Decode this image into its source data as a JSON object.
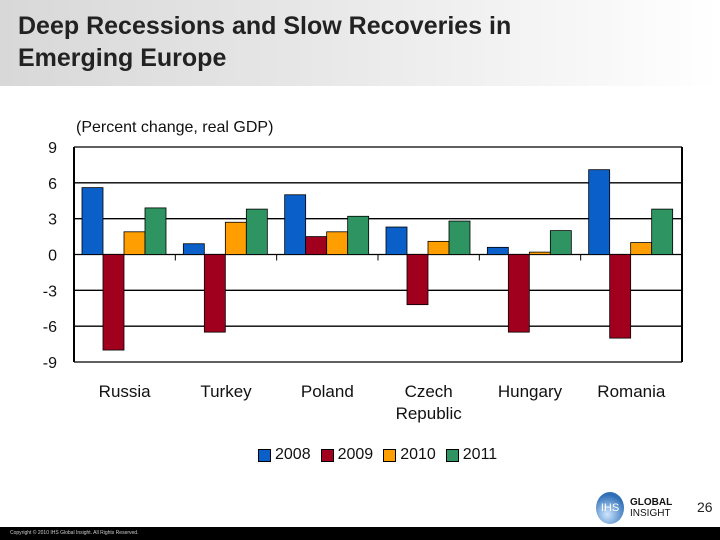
{
  "title": "Deep Recessions and Slow Recoveries in Emerging Europe",
  "page_number": "26",
  "footer": "Copyright © 2010 IHS Global Insight. All Rights Reserved.",
  "logo": {
    "mark": "IHS",
    "line1": "GLOBAL",
    "line2": "INSIGHT"
  },
  "chart_data": {
    "type": "bar",
    "title": "(Percent change, real GDP)",
    "categories": [
      "Russia",
      "Turkey",
      "Poland",
      "Czech Republic",
      "Hungary",
      "Romania"
    ],
    "series": [
      {
        "name": "2008",
        "color": "#0a5fc8",
        "values": [
          5.6,
          0.9,
          5.0,
          2.3,
          0.6,
          7.1
        ]
      },
      {
        "name": "2009",
        "color": "#a0001e",
        "values": [
          -8.0,
          -6.5,
          1.5,
          -4.2,
          -6.5,
          -7.0
        ]
      },
      {
        "name": "2010",
        "color": "#ff9e00",
        "values": [
          1.9,
          2.7,
          1.9,
          1.1,
          0.2,
          1.0
        ]
      },
      {
        "name": "2011",
        "color": "#2e9462",
        "values": [
          3.9,
          3.8,
          3.2,
          2.8,
          2.0,
          3.8
        ]
      }
    ],
    "yticks": [
      "9",
      "6",
      "3",
      "0",
      "-3",
      "-6",
      "-9"
    ],
    "ylim": [
      -9,
      9
    ],
    "grid": true,
    "legend": "bottom"
  }
}
